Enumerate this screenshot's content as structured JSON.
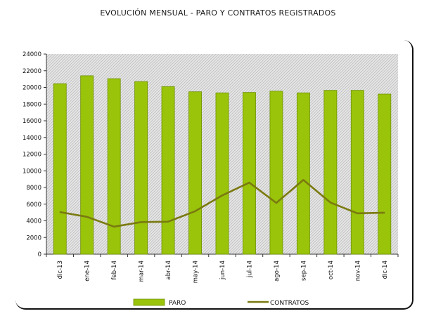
{
  "chart_data": {
    "type": "bar",
    "title": "EVOLUCIÓN MENSUAL - PARO Y CONTRATOS REGISTRADOS",
    "categories": [
      "dic-13",
      "ene-14",
      "feb-14",
      "mar-14",
      "abr-14",
      "may-14",
      "jun-14",
      "jul-14",
      "ago-14",
      "sep-14",
      "oct-14",
      "nov-14",
      "dic-14"
    ],
    "series": [
      {
        "name": "PARO",
        "type": "bar",
        "color": "#99c40a",
        "values": [
          20450,
          21400,
          21050,
          20700,
          20100,
          19480,
          19350,
          19400,
          19550,
          19350,
          19650,
          19650,
          19200
        ]
      },
      {
        "name": "CONTRATOS",
        "type": "line",
        "color": "#7a7a10",
        "values": [
          5050,
          4480,
          3300,
          3850,
          3900,
          5150,
          7050,
          8580,
          6150,
          8900,
          6200,
          4900,
          4980
        ]
      }
    ],
    "ylim": [
      0,
      24000
    ],
    "yticks": [
      0,
      2000,
      4000,
      6000,
      8000,
      10000,
      12000,
      14000,
      16000,
      18000,
      20000,
      22000,
      24000
    ],
    "xlabel": "",
    "ylabel": "",
    "grid": false,
    "legend": "bottom"
  }
}
